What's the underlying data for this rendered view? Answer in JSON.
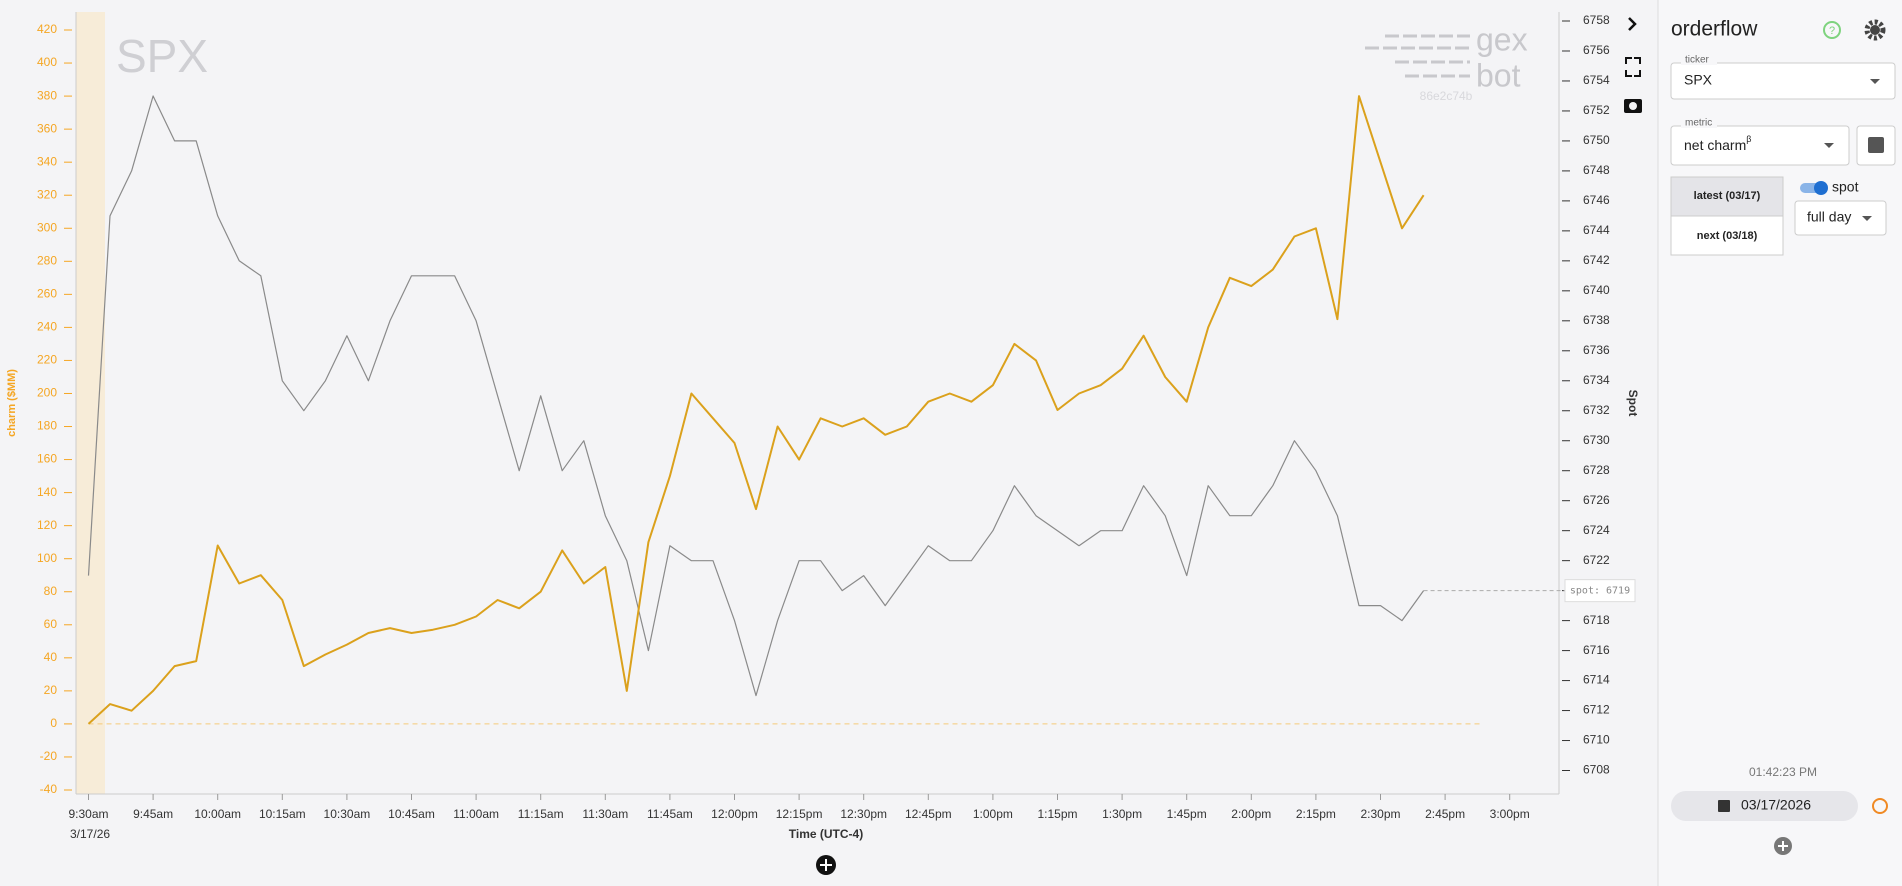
{
  "chart_data": {
    "type": "line",
    "watermark": "SPX",
    "logo_top": "gex",
    "logo_bottom": "bot",
    "logo_id": "86e2c74b",
    "ylabel": "charm ($MM)",
    "y2label": "Spot",
    "xlabel": "Time (UTC-4)",
    "x_date_label": "3/17/26",
    "spot_label": "spot: 6719",
    "x": [
      "9:30am",
      "9:35am",
      "9:40am",
      "9:45am",
      "9:50am",
      "9:55am",
      "10:00am",
      "10:05am",
      "10:10am",
      "10:15am",
      "10:20am",
      "10:25am",
      "10:30am",
      "10:35am",
      "10:40am",
      "10:45am",
      "10:50am",
      "10:55am",
      "11:00am",
      "11:05am",
      "11:10am",
      "11:15am",
      "11:20am",
      "11:25am",
      "11:30am",
      "11:35am",
      "11:40am",
      "11:45am",
      "11:50am",
      "11:55am",
      "12:00pm",
      "12:05pm",
      "12:10pm",
      "12:15pm",
      "12:20pm",
      "12:25pm",
      "12:30pm",
      "12:35pm",
      "12:40pm",
      "12:45pm",
      "12:50pm",
      "12:55pm",
      "1:00pm",
      "1:05pm",
      "1:10pm",
      "1:15pm",
      "1:20pm",
      "1:25pm",
      "1:30pm",
      "1:35pm",
      "1:40pm",
      "1:45pm",
      "1:50pm",
      "1:55pm",
      "2:00pm",
      "2:05pm",
      "2:10pm",
      "2:15pm",
      "2:20pm",
      "2:25pm",
      "2:30pm",
      "2:35pm",
      "2:40pm"
    ],
    "series": [
      {
        "color": "#dba11c",
        "axis": "y",
        "values": [
          0,
          12,
          8,
          20,
          35,
          38,
          108,
          85,
          90,
          75,
          35,
          42,
          48,
          55,
          58,
          55,
          57,
          60,
          65,
          75,
          70,
          80,
          105,
          85,
          95,
          20,
          110,
          150,
          200,
          185,
          170,
          130,
          180,
          160,
          185,
          180,
          185,
          175,
          180,
          195,
          200,
          195,
          205,
          230,
          220,
          190,
          200,
          205,
          215,
          235,
          210,
          195,
          240,
          270,
          265,
          275,
          295,
          300,
          245,
          380,
          340,
          300,
          320
        ]
      },
      {
        "color": "#8a8a8a",
        "axis": "y2",
        "values": [
          6721,
          6745,
          6748,
          6753,
          6750,
          6750,
          6745,
          6742,
          6741,
          6734,
          6732,
          6734,
          6737,
          6734,
          6738,
          6741,
          6741,
          6741,
          6738,
          6733,
          6728,
          6733,
          6728,
          6730,
          6725,
          6722,
          6716,
          6723,
          6722,
          6722,
          6718,
          6713,
          6718,
          6722,
          6722,
          6720,
          6721,
          6719,
          6721,
          6723,
          6722,
          6722,
          6724,
          6727,
          6725,
          6724,
          6723,
          6724,
          6724,
          6727,
          6725,
          6721,
          6727,
          6725,
          6725,
          6727,
          6730,
          6728,
          6725,
          6719,
          6719,
          6718,
          6720
        ]
      }
    ],
    "xlim": [
      "9:30am",
      "3:00pm"
    ],
    "xticks": [
      "9:30am",
      "9:45am",
      "10:00am",
      "10:15am",
      "10:30am",
      "10:45am",
      "11:00am",
      "11:15am",
      "11:30am",
      "11:45am",
      "12:00pm",
      "12:15pm",
      "12:30pm",
      "12:45pm",
      "1:00pm",
      "1:15pm",
      "1:30pm",
      "1:45pm",
      "2:00pm",
      "2:15pm",
      "2:30pm",
      "2:45pm",
      "3:00pm"
    ],
    "ylim": [
      -40,
      420
    ],
    "yticks": [
      -40,
      -20,
      0,
      20,
      40,
      60,
      80,
      100,
      120,
      140,
      160,
      180,
      200,
      220,
      240,
      260,
      280,
      300,
      320,
      340,
      360,
      380,
      400,
      420
    ],
    "y_axis_color": "#f5a623",
    "y2lim": [
      6706.7,
      6757.4
    ],
    "y2ticks": [
      6708,
      6710,
      6712,
      6714,
      6716,
      6718,
      6720,
      6722,
      6724,
      6726,
      6728,
      6730,
      6732,
      6734,
      6736,
      6738,
      6740,
      6742,
      6744,
      6746,
      6748,
      6750,
      6752,
      6754,
      6756,
      6758
    ],
    "grid": false
  },
  "sidebar": {
    "title": "orderflow",
    "ticker_label": "ticker",
    "ticker": "SPX",
    "metric_label": "metric",
    "metric": "net charm",
    "metric_superscript": "β",
    "latest": "latest (03/17)",
    "next": "next (03/18)",
    "spot_toggle": "spot",
    "range": "full day",
    "clock": "01:42:23 PM",
    "date": "03/17/2026"
  }
}
